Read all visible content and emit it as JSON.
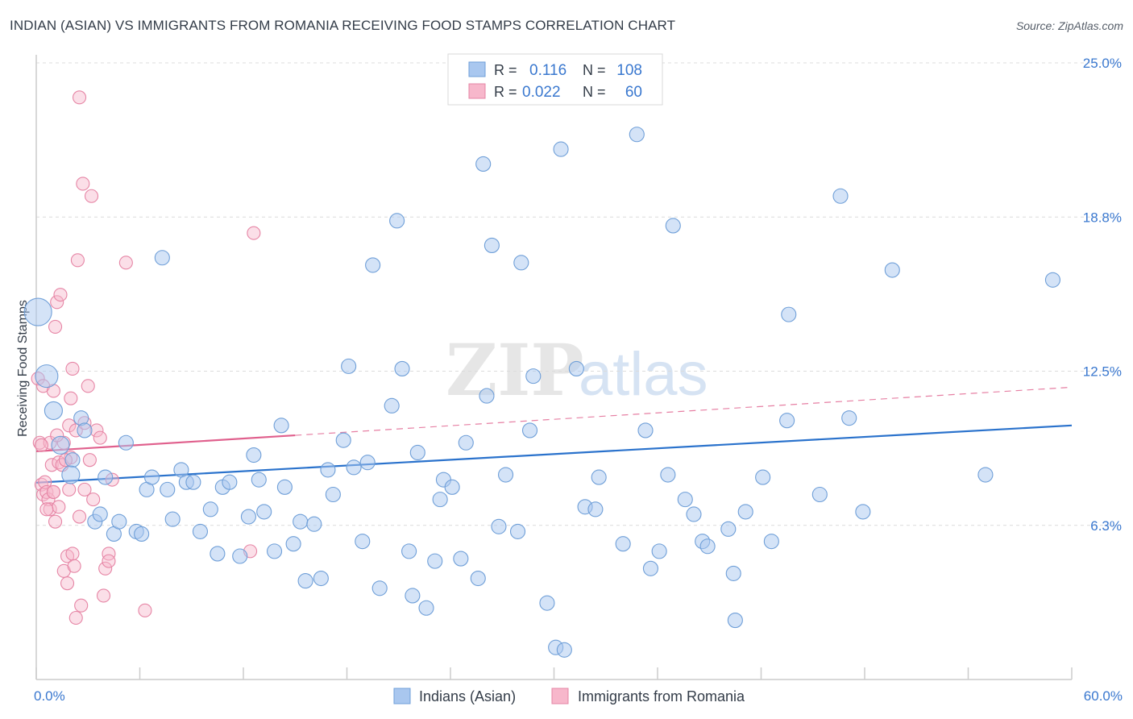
{
  "header": {
    "title": "INDIAN (ASIAN) VS IMMIGRANTS FROM ROMANIA RECEIVING FOOD STAMPS CORRELATION CHART",
    "source": "Source: ZipAtlas.com"
  },
  "watermark": {
    "zip": "ZIP",
    "atlas": "atlas"
  },
  "stats_box": {
    "rows": [
      {
        "r_label": "R =",
        "r_value": "0.116",
        "n_label": "N =",
        "n_value": "108",
        "color": "#a9c7ef"
      },
      {
        "r_label": "R =",
        "r_value": "0.022",
        "n_label": "N =",
        "n_value": "60",
        "color": "#f7b7cb"
      }
    ]
  },
  "colors": {
    "blue_fill": "#a9c7ef",
    "blue_stroke": "#6f9fd8",
    "blue_line": "#2a72cc",
    "pink_fill": "#f7b7cb",
    "pink_stroke": "#e685a5",
    "pink_line": "#e0608d",
    "value_text": "#3a78cf",
    "grid": "#dcdcdc",
    "axis": "#cccccc"
  },
  "chart_data": {
    "type": "scatter",
    "title": "INDIAN (ASIAN) VS IMMIGRANTS FROM ROMANIA RECEIVING FOOD STAMPS CORRELATION CHART",
    "xlabel": "",
    "ylabel": "Receiving Food Stamps",
    "xlim": [
      0,
      60
    ],
    "ylim": [
      0,
      25
    ],
    "x_tick_labels": [
      "0.0%",
      "60.0%"
    ],
    "y_ticks": [
      6.25,
      12.5,
      18.75,
      25.0
    ],
    "y_tick_labels": [
      "6.3%",
      "12.5%",
      "18.8%",
      "25.0%"
    ],
    "grid": true,
    "legend_position": "bottom-center",
    "series": [
      {
        "name": "Indians (Asian)",
        "color": "#a9c7ef",
        "R": 0.116,
        "N": 108,
        "trend": {
          "x": [
            0,
            60
          ],
          "y": [
            7.98,
            10.3
          ],
          "dashed_from": null
        },
        "points": [
          [
            0.1,
            14.9
          ],
          [
            0.6,
            12.3
          ],
          [
            1.0,
            10.9
          ],
          [
            1.4,
            9.5
          ],
          [
            2.1,
            8.9
          ],
          [
            2.0,
            8.3
          ],
          [
            2.6,
            10.6
          ],
          [
            2.8,
            10.1
          ],
          [
            3.4,
            6.4
          ],
          [
            3.7,
            6.7
          ],
          [
            4.0,
            8.2
          ],
          [
            4.5,
            5.9
          ],
          [
            4.8,
            6.4
          ],
          [
            5.2,
            9.6
          ],
          [
            5.8,
            6.0
          ],
          [
            6.1,
            5.9
          ],
          [
            6.4,
            7.7
          ],
          [
            6.7,
            8.2
          ],
          [
            7.3,
            17.1
          ],
          [
            7.6,
            7.7
          ],
          [
            7.9,
            6.5
          ],
          [
            8.4,
            8.5
          ],
          [
            8.7,
            8.0
          ],
          [
            9.1,
            8.0
          ],
          [
            9.5,
            6.0
          ],
          [
            10.1,
            6.9
          ],
          [
            10.5,
            5.1
          ],
          [
            10.8,
            7.8
          ],
          [
            11.2,
            8.0
          ],
          [
            11.8,
            5.0
          ],
          [
            12.3,
            6.6
          ],
          [
            12.6,
            9.1
          ],
          [
            12.9,
            8.1
          ],
          [
            13.2,
            6.8
          ],
          [
            13.8,
            5.2
          ],
          [
            14.2,
            10.3
          ],
          [
            14.4,
            7.8
          ],
          [
            14.9,
            5.5
          ],
          [
            15.3,
            6.4
          ],
          [
            15.6,
            4.0
          ],
          [
            16.1,
            6.3
          ],
          [
            16.5,
            4.1
          ],
          [
            16.9,
            8.5
          ],
          [
            17.2,
            7.5
          ],
          [
            17.8,
            9.7
          ],
          [
            18.1,
            12.7
          ],
          [
            18.4,
            8.6
          ],
          [
            18.9,
            5.6
          ],
          [
            19.2,
            8.8
          ],
          [
            19.5,
            16.8
          ],
          [
            19.9,
            3.7
          ],
          [
            20.6,
            11.1
          ],
          [
            20.9,
            18.6
          ],
          [
            21.2,
            12.6
          ],
          [
            21.6,
            5.2
          ],
          [
            21.8,
            3.4
          ],
          [
            22.1,
            9.2
          ],
          [
            22.6,
            2.9
          ],
          [
            23.1,
            4.8
          ],
          [
            23.4,
            7.3
          ],
          [
            23.6,
            8.1
          ],
          [
            24.1,
            7.8
          ],
          [
            24.6,
            4.9
          ],
          [
            24.9,
            9.6
          ],
          [
            25.6,
            4.1
          ],
          [
            25.9,
            20.9
          ],
          [
            26.1,
            11.5
          ],
          [
            26.4,
            17.6
          ],
          [
            26.8,
            6.2
          ],
          [
            27.2,
            8.3
          ],
          [
            27.9,
            6.0
          ],
          [
            28.1,
            16.9
          ],
          [
            28.6,
            10.1
          ],
          [
            28.8,
            12.3
          ],
          [
            29.6,
            3.1
          ],
          [
            30.1,
            1.3
          ],
          [
            30.6,
            1.2
          ],
          [
            30.4,
            21.5
          ],
          [
            31.3,
            12.6
          ],
          [
            31.8,
            7.0
          ],
          [
            32.4,
            6.9
          ],
          [
            32.6,
            8.2
          ],
          [
            34.0,
            5.5
          ],
          [
            34.8,
            22.1
          ],
          [
            35.3,
            10.1
          ],
          [
            35.6,
            4.5
          ],
          [
            36.1,
            5.2
          ],
          [
            36.6,
            8.3
          ],
          [
            36.9,
            18.4
          ],
          [
            37.6,
            7.3
          ],
          [
            38.1,
            6.7
          ],
          [
            38.6,
            5.6
          ],
          [
            38.9,
            5.4
          ],
          [
            40.1,
            6.1
          ],
          [
            40.5,
            2.4
          ],
          [
            40.4,
            4.3
          ],
          [
            41.1,
            6.8
          ],
          [
            42.6,
            5.6
          ],
          [
            42.1,
            8.2
          ],
          [
            43.6,
            14.8
          ],
          [
            43.5,
            10.5
          ],
          [
            45.4,
            7.5
          ],
          [
            46.6,
            19.6
          ],
          [
            47.1,
            10.6
          ],
          [
            47.9,
            6.8
          ],
          [
            49.6,
            16.6
          ],
          [
            55.0,
            8.3
          ],
          [
            58.9,
            16.2
          ]
        ],
        "large_points": [
          [
            0.1,
            14.9
          ],
          [
            0.6,
            12.3
          ],
          [
            1.0,
            10.9
          ],
          [
            1.4,
            9.5
          ],
          [
            2.0,
            8.3
          ]
        ]
      },
      {
        "name": "Immigrants from Romania",
        "color": "#f7b7cb",
        "R": 0.022,
        "N": 60,
        "trend": {
          "x": [
            0,
            60
          ],
          "y": [
            9.25,
            11.85
          ],
          "solid_until": 15
        },
        "points": [
          [
            0.1,
            12.2
          ],
          [
            0.2,
            9.6
          ],
          [
            0.3,
            7.9
          ],
          [
            0.4,
            11.9
          ],
          [
            0.4,
            7.5
          ],
          [
            0.5,
            8.0
          ],
          [
            0.6,
            7.6
          ],
          [
            0.7,
            7.3
          ],
          [
            0.8,
            9.6
          ],
          [
            0.8,
            6.9
          ],
          [
            0.9,
            8.7
          ],
          [
            1.0,
            11.7
          ],
          [
            1.0,
            7.6
          ],
          [
            1.1,
            6.4
          ],
          [
            1.1,
            14.3
          ],
          [
            1.2,
            15.3
          ],
          [
            1.3,
            7.0
          ],
          [
            1.3,
            8.8
          ],
          [
            1.4,
            15.6
          ],
          [
            1.5,
            8.7
          ],
          [
            1.6,
            4.4
          ],
          [
            1.6,
            9.6
          ],
          [
            1.8,
            3.9
          ],
          [
            1.8,
            5.0
          ],
          [
            1.9,
            10.3
          ],
          [
            1.9,
            7.7
          ],
          [
            2.0,
            11.4
          ],
          [
            2.0,
            9.0
          ],
          [
            2.1,
            5.1
          ],
          [
            2.1,
            12.6
          ],
          [
            2.2,
            4.6
          ],
          [
            2.3,
            2.5
          ],
          [
            2.3,
            10.1
          ],
          [
            2.4,
            17.0
          ],
          [
            2.5,
            6.6
          ],
          [
            2.5,
            23.6
          ],
          [
            2.6,
            3.0
          ],
          [
            2.7,
            20.1
          ],
          [
            2.8,
            7.7
          ],
          [
            2.8,
            10.4
          ],
          [
            3.0,
            11.9
          ],
          [
            3.1,
            8.9
          ],
          [
            3.2,
            19.6
          ],
          [
            3.3,
            7.3
          ],
          [
            3.5,
            10.1
          ],
          [
            3.7,
            9.8
          ],
          [
            3.9,
            3.4
          ],
          [
            4.0,
            4.5
          ],
          [
            4.2,
            5.1
          ],
          [
            4.2,
            4.8
          ],
          [
            4.4,
            8.1
          ],
          [
            5.2,
            16.9
          ],
          [
            6.3,
            2.8
          ],
          [
            12.4,
            5.2
          ],
          [
            12.6,
            18.1
          ],
          [
            1.0,
            7.6
          ],
          [
            1.2,
            9.9
          ],
          [
            0.6,
            6.9
          ],
          [
            1.7,
            8.9
          ],
          [
            0.3,
            9.5
          ]
        ]
      }
    ]
  },
  "legend": {
    "items": [
      {
        "label": "Indians (Asian)",
        "color": "#a9c7ef"
      },
      {
        "label": "Immigrants from Romania",
        "color": "#f7b7cb"
      }
    ]
  }
}
